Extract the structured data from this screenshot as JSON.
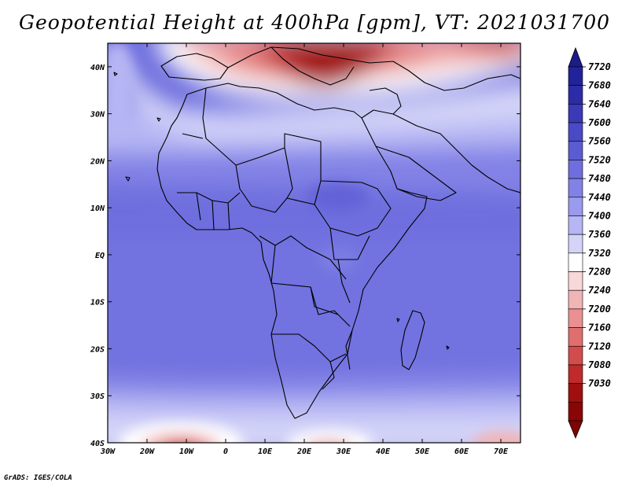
{
  "title": "Geopotential Height at 400hPa [gpm], VT: 2021031700",
  "footer": "GrADS: IGES/COLA",
  "map": {
    "projection": "lat-lon",
    "region": {
      "lon_range": [
        -30,
        75
      ],
      "lat_range": [
        -40,
        45
      ]
    },
    "lat_ticks": [
      {
        "value": 40,
        "label": "40N"
      },
      {
        "value": 30,
        "label": "30N"
      },
      {
        "value": 20,
        "label": "20N"
      },
      {
        "value": 10,
        "label": "10N"
      },
      {
        "value": 0,
        "label": "EQ"
      },
      {
        "value": -10,
        "label": "10S"
      },
      {
        "value": -20,
        "label": "20S"
      },
      {
        "value": -30,
        "label": "30S"
      },
      {
        "value": -40,
        "label": "40S"
      }
    ],
    "lon_ticks": [
      {
        "value": -30,
        "label": "30W"
      },
      {
        "value": -20,
        "label": "20W"
      },
      {
        "value": -10,
        "label": "10W"
      },
      {
        "value": 0,
        "label": "0"
      },
      {
        "value": 10,
        "label": "10E"
      },
      {
        "value": 20,
        "label": "20E"
      },
      {
        "value": 30,
        "label": "30E"
      },
      {
        "value": 40,
        "label": "40E"
      },
      {
        "value": 50,
        "label": "50E"
      },
      {
        "value": 60,
        "label": "60E"
      },
      {
        "value": 70,
        "label": "70E"
      }
    ]
  },
  "colorbar": {
    "levels": [
      "7720",
      "7680",
      "7640",
      "7600",
      "7560",
      "7520",
      "7480",
      "7440",
      "7400",
      "7360",
      "7320",
      "7280",
      "7240",
      "7200",
      "7160",
      "7120",
      "7080",
      "7030"
    ],
    "colors": [
      "#22229a",
      "#2c2ca8",
      "#3a3ab8",
      "#4a4ac6",
      "#5c5cd2",
      "#6e6ede",
      "#8282e6",
      "#9a9aee",
      "#b6b6f4",
      "#d4d4f8",
      "#ffffff",
      "#f8d8d8",
      "#f2b4b4",
      "#ea9090",
      "#e06e6e",
      "#d24c4c",
      "#c02a2a",
      "#a00f0f",
      "#8a0505"
    ],
    "top_color": "#1c1c8a",
    "bottom_color": "#800404"
  }
}
